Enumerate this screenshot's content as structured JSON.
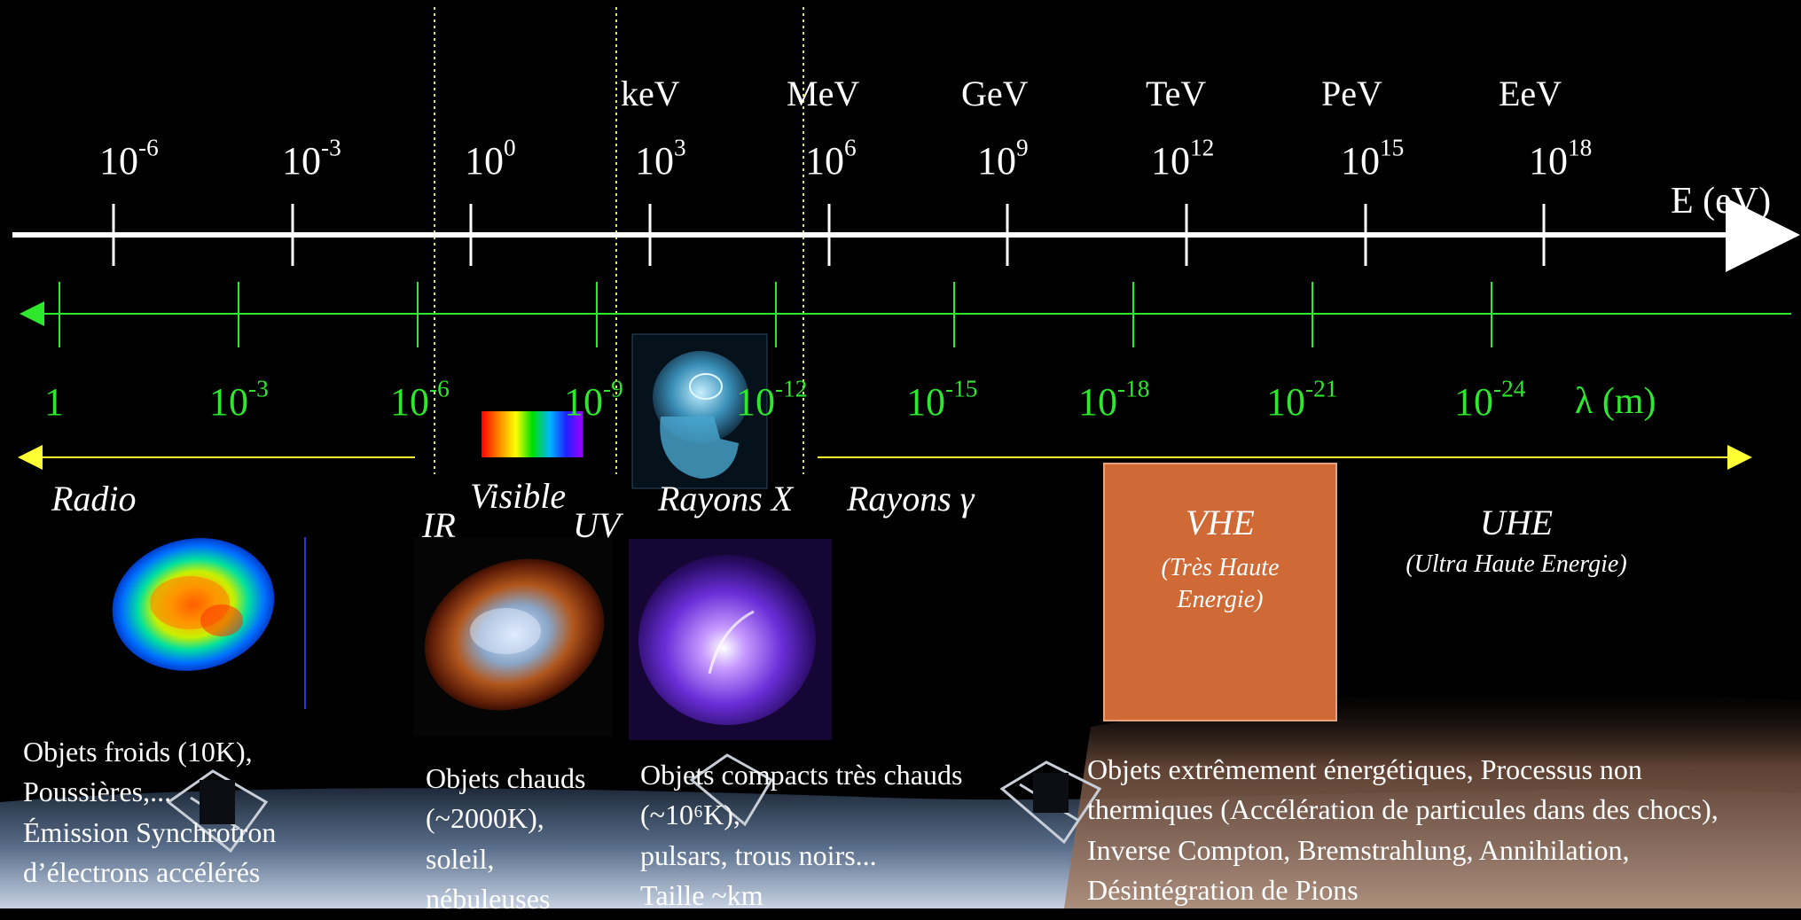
{
  "energy_axis": {
    "title": "E (eV)",
    "units": [
      {
        "label": "keV"
      },
      {
        "label": "MeV"
      },
      {
        "label": "GeV"
      },
      {
        "label": "TeV"
      },
      {
        "label": "PeV"
      },
      {
        "label": "EeV"
      }
    ],
    "ticks": [
      {
        "base": "10",
        "exp": "-6"
      },
      {
        "base": "10",
        "exp": "-3"
      },
      {
        "base": "10",
        "exp": "0"
      },
      {
        "base": "10",
        "exp": "3"
      },
      {
        "base": "10",
        "exp": "6"
      },
      {
        "base": "10",
        "exp": "9"
      },
      {
        "base": "10",
        "exp": "12"
      },
      {
        "base": "10",
        "exp": "15"
      },
      {
        "base": "10",
        "exp": "18"
      }
    ]
  },
  "wavelength_axis": {
    "title": "λ (m)",
    "ticks": [
      {
        "base": "1",
        "exp": ""
      },
      {
        "base": "10",
        "exp": "-3"
      },
      {
        "base": "10",
        "exp": "-6"
      },
      {
        "base": "10",
        "exp": "-9"
      },
      {
        "base": "10",
        "exp": "-12"
      },
      {
        "base": "10",
        "exp": "-15"
      },
      {
        "base": "10",
        "exp": "-18"
      },
      {
        "base": "10",
        "exp": "-21"
      },
      {
        "base": "10",
        "exp": "-24"
      }
    ]
  },
  "bands": {
    "radio": "Radio",
    "ir": "IR",
    "visible": "Visible",
    "uv": "UV",
    "xray": "Rayons X",
    "gamma": "Rayons γ"
  },
  "vhe": {
    "title": "VHE",
    "subtitle_1": "(Très Haute",
    "subtitle_2": "Energie)"
  },
  "uhe": {
    "title": "UHE",
    "subtitle": "(Ultra Haute Energie)"
  },
  "descriptions": {
    "radio": [
      "Objets froids (10K),",
      "Poussières,...",
      "Émission Synchrotron",
      "d’électrons accélérés"
    ],
    "ir_visible": [
      "Objets chauds",
      "(~2000K),",
      "soleil,",
      "nébuleuses"
    ],
    "xray": [
      "Objets compacts très chauds",
      "(~10⁶K),",
      "pulsars, trous noirs...",
      "Taille ~km"
    ],
    "gamma": [
      "Objets extrêmement énergétiques, Processus non",
      "thermiques (Accélération de particules dans des chocs),",
      "Inverse Compton, Bremstrahlung, Annihilation,",
      "Désintégration de Pions"
    ]
  },
  "colors": {
    "background": "#000000",
    "energy_axis": "#ffffff",
    "wavelength_axis": "#2ee82e",
    "band_arrow": "#ffff33",
    "separator": "#e6e64d",
    "vhe_box": "#cf6a37"
  },
  "icons": {
    "radio_map": "radio-sky-map-icon",
    "crab_nebula_optical": "crab-nebula-optical-icon",
    "xray_skull": "xray-skull-icon",
    "crab_nebula_xray": "crab-nebula-xray-icon",
    "spectrum": "rainbow-spectrum-icon",
    "telescopes": "cherenkov-telescope-icon"
  }
}
